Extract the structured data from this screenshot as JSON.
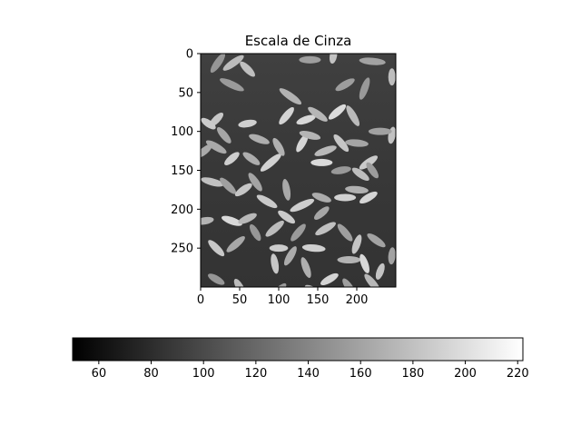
{
  "chart_data": [
    {
      "type": "heatmap",
      "title": "Escala de Cinza",
      "xlabel": "",
      "ylabel": "",
      "xlim": [
        0,
        250
      ],
      "ylim": [
        300,
        0
      ],
      "x_ticks": [
        0,
        50,
        100,
        150,
        200
      ],
      "y_ticks": [
        0,
        50,
        100,
        150,
        200,
        250
      ],
      "colormap": "gray",
      "background_gray_level": 60,
      "grain_gray_range": [
        150,
        220
      ],
      "description_image": "grayscale image of rice grains on a dark background"
    },
    {
      "type": "colorbar",
      "orientation": "horizontal",
      "range": [
        50,
        222
      ],
      "ticks": [
        60,
        80,
        100,
        120,
        140,
        160,
        180,
        200,
        220
      ],
      "colormap": "gray"
    }
  ],
  "colors": {
    "axis": "#000000",
    "cmap_low": "#000000",
    "cmap_high": "#ffffff",
    "background": "#3a3a3a"
  }
}
